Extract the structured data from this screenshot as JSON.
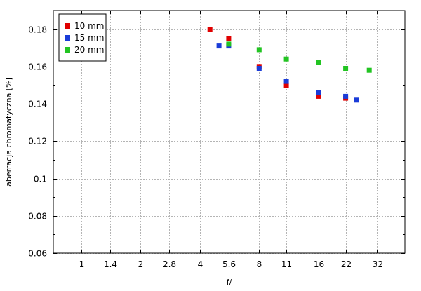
{
  "chart_data": {
    "type": "scatter",
    "xlabel": "f/",
    "ylabel": "aberracja chromatyczna [%]",
    "x_scale": "log2",
    "x_ticks": [
      1,
      1.4,
      2,
      2.8,
      4,
      5.6,
      8,
      11,
      16,
      22,
      32
    ],
    "x_tick_labels": [
      "1",
      "1.4",
      "2",
      "2.8",
      "4",
      "5.6",
      "8",
      "11",
      "16",
      "22",
      "32"
    ],
    "xlim": [
      0.72,
      44
    ],
    "y_ticks": [
      0.06,
      0.08,
      0.1,
      0.12,
      0.14,
      0.16,
      0.18
    ],
    "y_tick_labels": [
      "0.06",
      "0.08",
      "0.1",
      "0.12",
      "0.14",
      "0.16",
      "0.18"
    ],
    "ylim": [
      0.06,
      0.19
    ],
    "grid": true,
    "legend_position": "top-left",
    "series": [
      {
        "name": "10 mm",
        "color": "#e00000",
        "x": [
          4.5,
          5.6,
          8,
          11,
          16,
          22
        ],
        "y": [
          0.18,
          0.175,
          0.16,
          0.15,
          0.144,
          0.143
        ]
      },
      {
        "name": "15 mm",
        "color": "#1a3cd8",
        "x": [
          5.0,
          5.6,
          8,
          11,
          16,
          22,
          25
        ],
        "y": [
          0.171,
          0.171,
          0.159,
          0.152,
          0.146,
          0.144,
          0.142
        ]
      },
      {
        "name": "20 mm",
        "color": "#22c422",
        "x": [
          5.6,
          8,
          11,
          16,
          22,
          29
        ],
        "y": [
          0.172,
          0.169,
          0.164,
          0.162,
          0.159,
          0.158
        ]
      }
    ]
  }
}
